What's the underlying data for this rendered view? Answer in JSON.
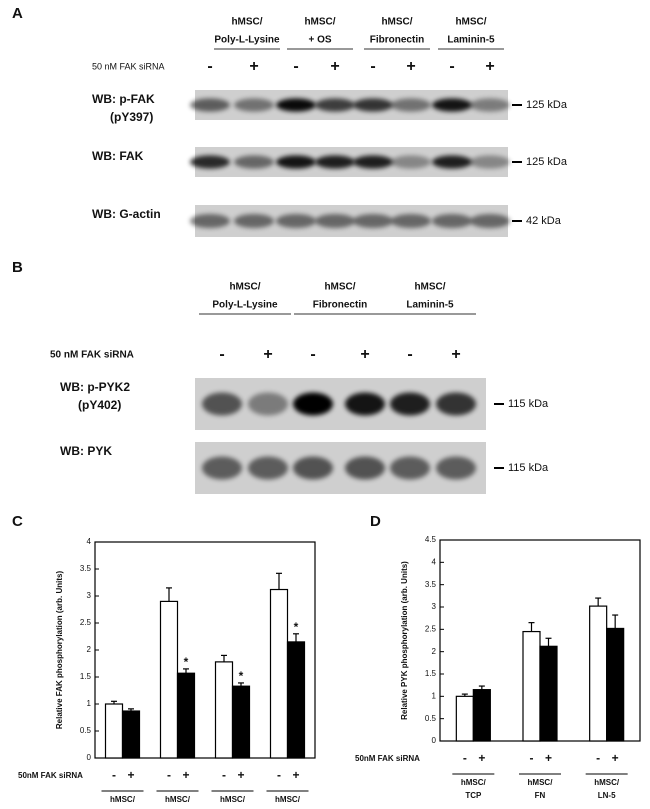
{
  "panel_a": {
    "label": "A",
    "columns": [
      [
        "hMSC/",
        "Poly-L-Lysine"
      ],
      [
        "hMSC/",
        "+ OS"
      ],
      [
        "hMSC/",
        "Fibronectin"
      ],
      [
        "hMSC/",
        "Laminin-5"
      ]
    ],
    "sirna_label": "50 nM FAK siRNA",
    "signs": [
      "-",
      "+",
      "-",
      "+",
      "-",
      "+",
      "-",
      "+"
    ],
    "blots": [
      {
        "label": [
          "WB: p-FAK",
          "(pY397)"
        ],
        "marker": "125 kDa"
      },
      {
        "label": [
          "WB: FAK"
        ],
        "marker": "125 kDa"
      },
      {
        "label": [
          "WB: G-actin"
        ],
        "marker": "42 kDa"
      }
    ]
  },
  "panel_b": {
    "label": "B",
    "columns": [
      [
        "hMSC/",
        "Poly-L-Lysine"
      ],
      [
        "hMSC/",
        "Fibronectin"
      ],
      [
        "hMSC/",
        "Laminin-5"
      ]
    ],
    "sirna_label": "50 nM FAK siRNA",
    "signs": [
      "-",
      "+",
      "-",
      "+",
      "-",
      "+"
    ],
    "blots": [
      {
        "label": [
          "WB: p-PYK2",
          "(pY402)"
        ],
        "marker": "115 kDa"
      },
      {
        "label": [
          "WB: PYK"
        ],
        "marker": "115 kDa"
      }
    ]
  },
  "chart_data": [
    {
      "type": "bar",
      "label": "C",
      "y_label": "Relative FAK phosphorylation (arb. Units)",
      "sirna_label": "50nM FAK siRNA",
      "signs": [
        "-",
        "+"
      ],
      "categories": [
        [
          "hMSC/"
        ],
        [
          "hMSC/"
        ],
        [
          "hMSC/"
        ],
        [
          "hMSC/"
        ]
      ],
      "series": [
        {
          "color": "#ffffff",
          "values": [
            1.0,
            2.9,
            1.78,
            3.12
          ],
          "errors": [
            0.05,
            0.25,
            0.12,
            0.3
          ]
        },
        {
          "color": "#000000",
          "values": [
            0.87,
            1.57,
            1.33,
            2.15
          ],
          "errors": [
            0.04,
            0.08,
            0.06,
            0.15
          ],
          "annotations": [
            null,
            "*",
            "*",
            "*"
          ]
        }
      ],
      "ylim": [
        0,
        4
      ],
      "yticks": [
        0,
        0.5,
        1,
        1.5,
        2,
        2.5,
        3,
        3.5,
        4
      ]
    },
    {
      "type": "bar",
      "label": "D",
      "y_label": "Relative PYK phosphorylation (arb. Units)",
      "sirna_label": "50nM FAK siRNA",
      "signs": [
        "-",
        "+"
      ],
      "categories": [
        [
          "hMSC/",
          "TCP"
        ],
        [
          "hMSC/",
          "FN"
        ],
        [
          "hMSC/",
          "LN-5"
        ]
      ],
      "series": [
        {
          "color": "#ffffff",
          "values": [
            1.0,
            2.45,
            3.02
          ],
          "errors": [
            0.05,
            0.2,
            0.18
          ]
        },
        {
          "color": "#000000",
          "values": [
            1.15,
            2.12,
            2.52
          ],
          "errors": [
            0.08,
            0.18,
            0.3
          ]
        }
      ],
      "ylim": [
        0,
        4.5
      ],
      "yticks": [
        0,
        0.5,
        1,
        1.5,
        2,
        2.5,
        3,
        3.5,
        4,
        4.5
      ]
    }
  ]
}
